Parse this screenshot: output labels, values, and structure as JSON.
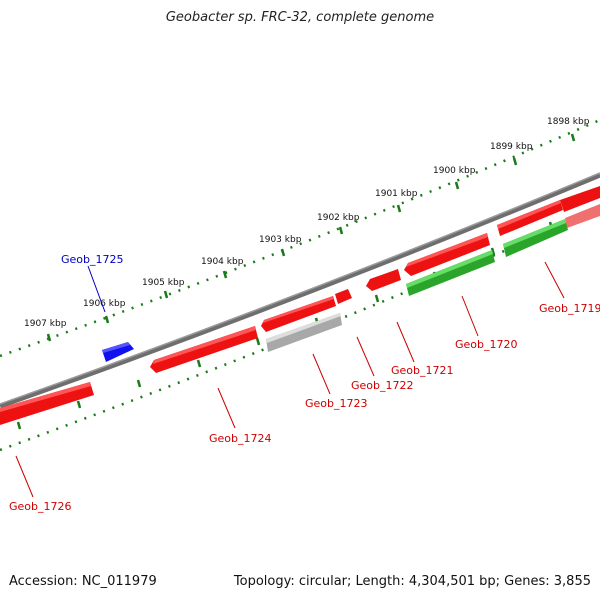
{
  "title": "Geobacter sp. FRC-32, complete genome",
  "footer": {
    "accession": "Accession: NC_011979",
    "summary": "Topology: circular; Length: 4,304,501 bp; Genes: 3,855"
  },
  "colors": {
    "backbone": "#808080",
    "forward_gene": "#ee1111",
    "reverse_gene": "#ee1111",
    "green_gene": "#33bb33",
    "gray_gene": "#b0b0b0",
    "blue_gene": "#1111ee",
    "tick": "#1a7a1a",
    "label_red": "#cc0000",
    "label_blue": "#0000bb"
  },
  "kbp_labels": [
    "1898 kbp",
    "1899 kbp",
    "1900 kbp",
    "1901 kbp",
    "1902 kbp",
    "1903 kbp",
    "1904 kbp",
    "1905 kbp",
    "1906 kbp",
    "1907 kbp"
  ],
  "genes": [
    {
      "id": "Geob_1719",
      "label": "Geob_1719",
      "color": "red"
    },
    {
      "id": "Geob_1720",
      "label": "Geob_1720",
      "color": "green"
    },
    {
      "id": "Geob_1721",
      "label": "Geob_1721",
      "color": "red"
    },
    {
      "id": "Geob_1722",
      "label": "Geob_1722",
      "color": "red"
    },
    {
      "id": "Geob_1723",
      "label": "Geob_1723",
      "color": "gray"
    },
    {
      "id": "Geob_1724",
      "label": "Geob_1724",
      "color": "red"
    },
    {
      "id": "Geob_1725",
      "label": "Geob_1725",
      "color": "blue"
    },
    {
      "id": "Geob_1726",
      "label": "Geob_1726",
      "color": "red"
    }
  ]
}
